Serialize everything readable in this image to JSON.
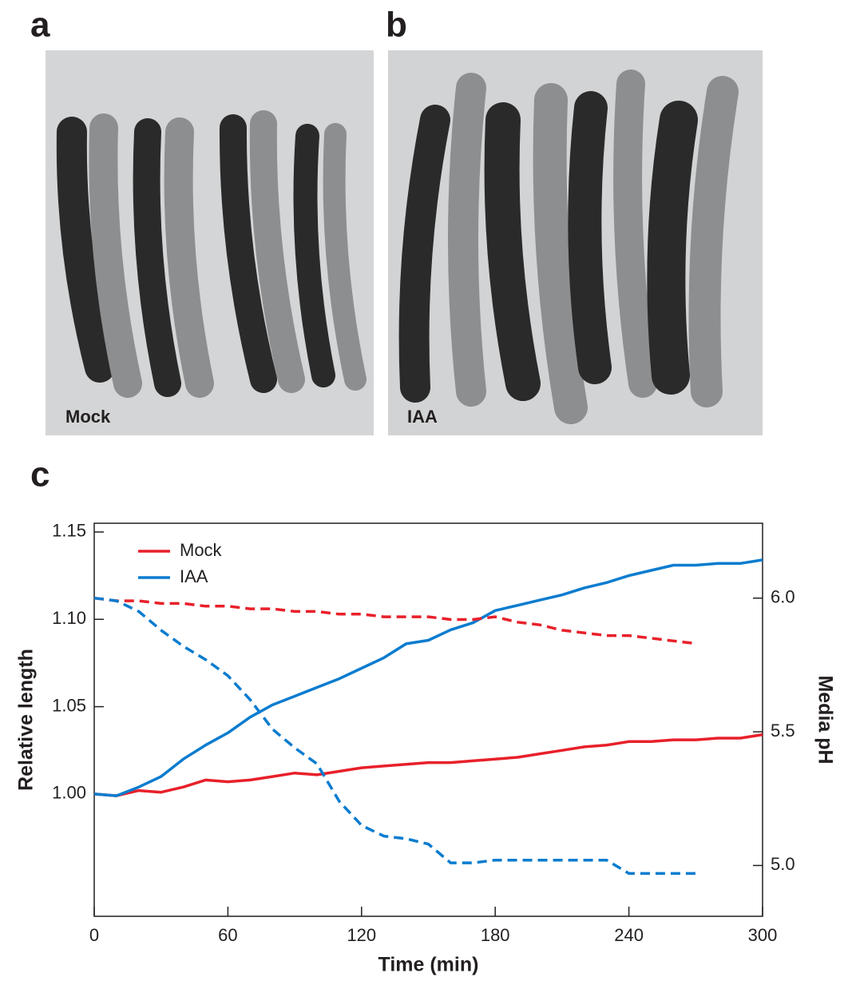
{
  "panels": [
    {
      "label": "a",
      "caption": "Mock"
    },
    {
      "label": "b",
      "caption": "IAA"
    },
    {
      "label": "c"
    }
  ],
  "chart_data": {
    "type": "line",
    "xlabel": "Time (min)",
    "ylabel": "Relative length",
    "y2label": "Media pH",
    "x": [
      0,
      10,
      20,
      30,
      40,
      50,
      60,
      70,
      80,
      90,
      100,
      110,
      120,
      130,
      140,
      150,
      160,
      170,
      180,
      190,
      200,
      210,
      220,
      230,
      240,
      250,
      260,
      270,
      280,
      290,
      300
    ],
    "series": [
      {
        "name": "Mock",
        "color": "#e8202a",
        "dashed": false,
        "values": [
          1.0,
          0.999,
          1.002,
          1.001,
          1.004,
          1.008,
          1.007,
          1.008,
          1.01,
          1.012,
          1.011,
          1.013,
          1.015,
          1.016,
          1.017,
          1.018,
          1.018,
          1.019,
          1.02,
          1.021,
          1.023,
          1.025,
          1.027,
          1.028,
          1.03,
          1.03,
          1.031,
          1.031,
          1.032,
          1.032,
          1.034
        ]
      },
      {
        "name": "IAA",
        "color": "#0a7ccf",
        "dashed": false,
        "values": [
          1.0,
          0.999,
          1.004,
          1.01,
          1.02,
          1.028,
          1.035,
          1.044,
          1.051,
          1.056,
          1.061,
          1.066,
          1.072,
          1.078,
          1.086,
          1.088,
          1.094,
          1.098,
          1.105,
          1.108,
          1.111,
          1.114,
          1.118,
          1.121,
          1.125,
          1.128,
          1.131,
          1.131,
          1.132,
          1.132,
          1.134
        ]
      },
      {
        "color": "#e8202a",
        "dashed": true,
        "axis": "y2",
        "values": [
          6.0,
          5.99,
          5.99,
          5.98,
          5.98,
          5.97,
          5.97,
          5.96,
          5.96,
          5.95,
          5.95,
          5.94,
          5.94,
          5.93,
          5.93,
          5.93,
          5.92,
          5.92,
          5.93,
          5.91,
          5.9,
          5.88,
          5.87,
          5.86,
          5.86,
          5.85,
          5.84,
          5.83,
          null,
          null,
          null
        ]
      },
      {
        "color": "#0a7ccf",
        "dashed": true,
        "axis": "y2",
        "values": [
          6.0,
          5.99,
          5.95,
          5.88,
          5.82,
          5.77,
          5.71,
          5.62,
          5.51,
          5.44,
          5.38,
          5.24,
          5.15,
          5.11,
          5.1,
          5.08,
          5.01,
          5.01,
          5.02,
          5.02,
          5.02,
          5.02,
          5.02,
          5.02,
          4.97,
          4.97,
          4.97,
          4.97,
          null,
          null,
          null
        ]
      }
    ],
    "xlim": [
      0,
      300
    ],
    "xticks": [
      0,
      60,
      120,
      180,
      240,
      300
    ],
    "ylim": [
      0.93,
      1.155
    ],
    "yticks": [
      {
        "value": 1,
        "label": "1.00"
      },
      {
        "value": 1.05,
        "label": "1.05"
      },
      {
        "value": 1.1,
        "label": "1.10"
      },
      {
        "value": 1.15,
        "label": "1.15"
      }
    ],
    "y2lim": [
      4.81,
      6.28
    ],
    "y2ticks": [
      {
        "value": 5,
        "label": "5.0"
      },
      {
        "value": 5.5,
        "label": "5.5"
      },
      {
        "value": 6,
        "label": "6.0"
      }
    ],
    "legend": "upper left"
  }
}
